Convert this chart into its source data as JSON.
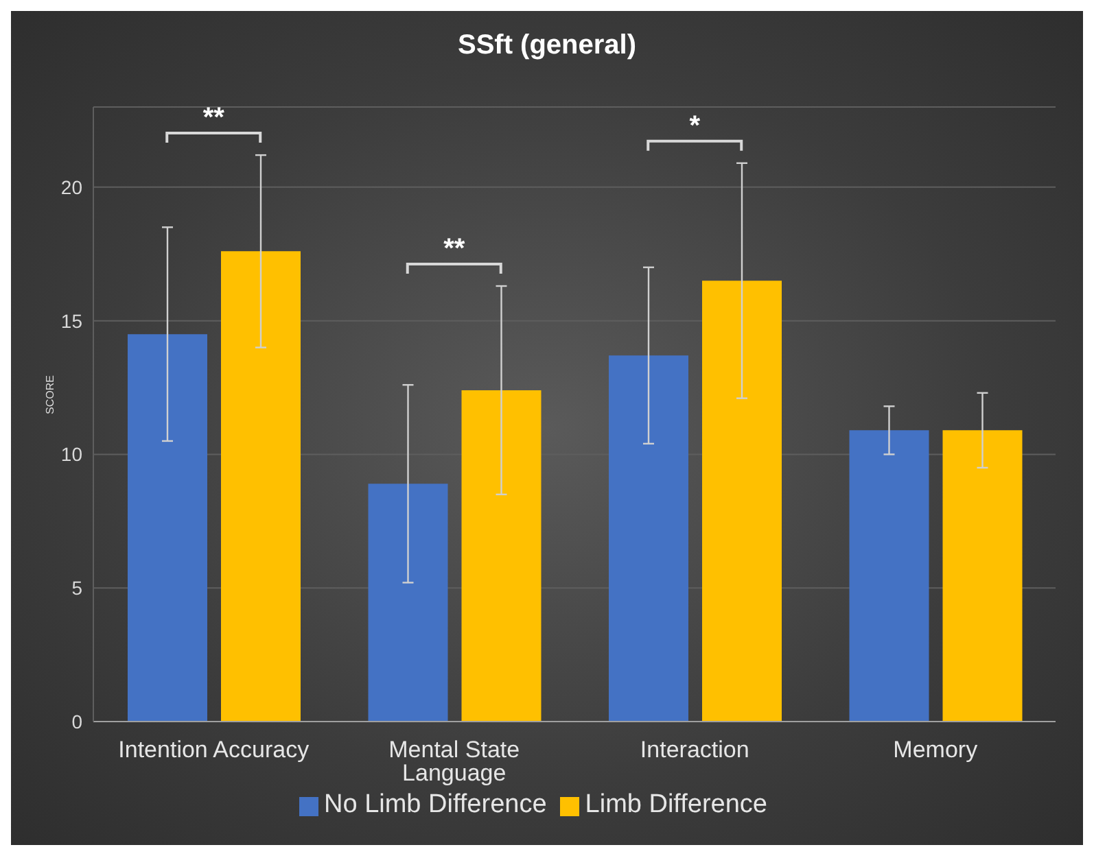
{
  "chart_data": {
    "type": "bar",
    "title": "SSft (general)",
    "ylabel": "SCORE",
    "categories": [
      "Intention Accuracy",
      "Mental State Language",
      "Interaction",
      "Memory"
    ],
    "series": [
      {
        "name": "No Limb Difference",
        "color": "#4472c4",
        "values": [
          14.5,
          8.9,
          13.7,
          10.9
        ],
        "errors": [
          4.0,
          3.7,
          3.3,
          0.9
        ]
      },
      {
        "name": "Limb Difference",
        "color": "#ffc000",
        "values": [
          17.6,
          12.4,
          16.5,
          10.9
        ],
        "errors": [
          3.6,
          3.9,
          4.4,
          1.4
        ]
      }
    ],
    "ylim": [
      0,
      23
    ],
    "yticks": [
      0,
      5,
      10,
      15,
      20
    ],
    "grid": "y",
    "legend": "bottom",
    "annotations": [
      "**",
      "**",
      "*"
    ]
  }
}
